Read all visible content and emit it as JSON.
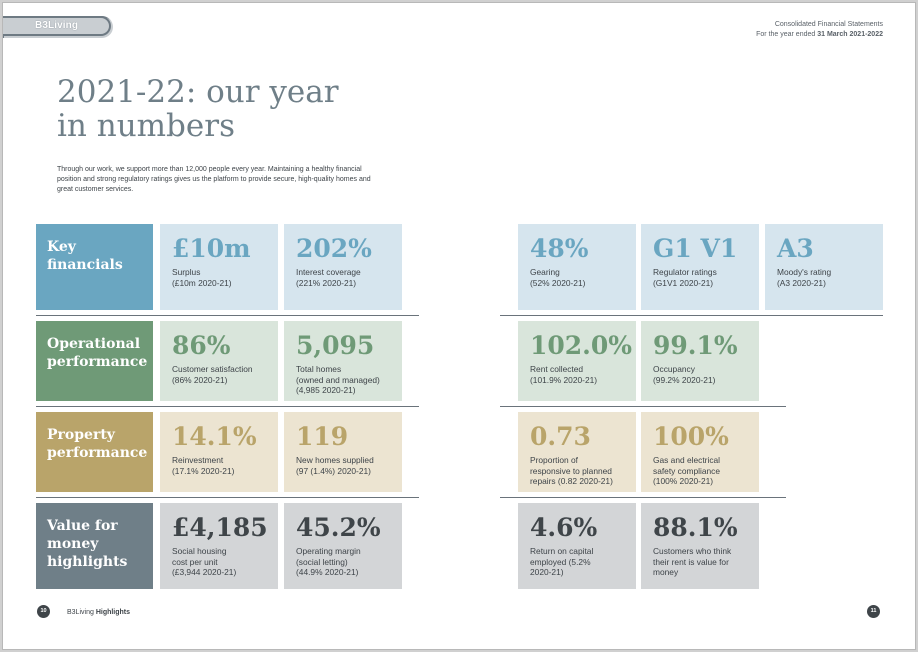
{
  "brand": {
    "name": "B3Living"
  },
  "header": {
    "line1": "Consolidated Financial Statements",
    "line2_prefix": "For the year ended ",
    "line2_bold": "31 March 2021-2022"
  },
  "title": {
    "line1": "2021-22: our year",
    "line2": "in numbers"
  },
  "intro": "Through our work, we support more than 12,000 people every year. Maintaining a healthy financial position and strong regulatory ratings gives us the platform to provide secure, high-quality homes and great customer services.",
  "colors": {
    "blue": "#6aa6c1",
    "blue_bg": "#d6e5ee",
    "green": "#6f9a77",
    "green_bg": "#d9e5db",
    "gold": "#b9a46a",
    "gold_bg": "#ece4d1",
    "slate": "#6f7f88",
    "slate_bg": "#d3d5d7",
    "slate_val": "#3f4549"
  },
  "sections": [
    {
      "label": "Key financials",
      "stats": [
        {
          "value": "£10m",
          "label": "Surplus",
          "prev": "(£10m 2020-21)"
        },
        {
          "value": "202%",
          "label": "Interest coverage",
          "prev": "(221% 2020-21)"
        },
        {
          "value": "48%",
          "label": "Gearing",
          "prev": "(52% 2020-21)"
        },
        {
          "value": "G1 V1",
          "label": "Regulator ratings",
          "prev": "(G1V1 2020-21)"
        },
        {
          "value": "A3",
          "label": "Moody's rating",
          "prev": "(A3 2020-21)"
        }
      ]
    },
    {
      "label": "Operational performance",
      "stats": [
        {
          "value": "86%",
          "label": "Customer satisfaction",
          "prev": "(86% 2020-21)"
        },
        {
          "value": "5,095",
          "label": "Total homes\n(owned and managed)",
          "prev": "(4,985 2020-21)"
        },
        {
          "value": "102.0%",
          "label": "Rent collected",
          "prev": "(101.9% 2020-21)"
        },
        {
          "value": "99.1%",
          "label": "Occupancy",
          "prev": "(99.2% 2020-21)"
        }
      ]
    },
    {
      "label": "Property performance",
      "stats": [
        {
          "value": "14.1%",
          "label": "Reinvestment",
          "prev": "(17.1% 2020-21)"
        },
        {
          "value": "119",
          "label": "New homes supplied",
          "prev": "(97 (1.4%) 2020-21)"
        },
        {
          "value": "0.73",
          "label": "Proportion of\nresponsive to planned\nrepairs (0.82 2020-21)",
          "prev": ""
        },
        {
          "value": "100%",
          "label": "Gas and electrical\nsafety compliance",
          "prev": "(100% 2020-21)"
        }
      ]
    },
    {
      "label": "Value for money highlights",
      "stats": [
        {
          "value": "£4,185",
          "label": "Social housing\ncost per unit",
          "prev": "(£3,944 2020-21)"
        },
        {
          "value": "45.2%",
          "label": "Operating margin\n(social letting)",
          "prev": "(44.9% 2020-21)"
        },
        {
          "value": "4.6%",
          "label": "Return on capital\nemployed (5.2%\n2020-21)",
          "prev": ""
        },
        {
          "value": "88.1%",
          "label": "Customers who think\ntheir rent is value for\nmoney",
          "prev": ""
        }
      ]
    }
  ],
  "footer": {
    "left_page": "10",
    "brand": "B3Living",
    "section": "Highlights",
    "right_page": "11"
  }
}
